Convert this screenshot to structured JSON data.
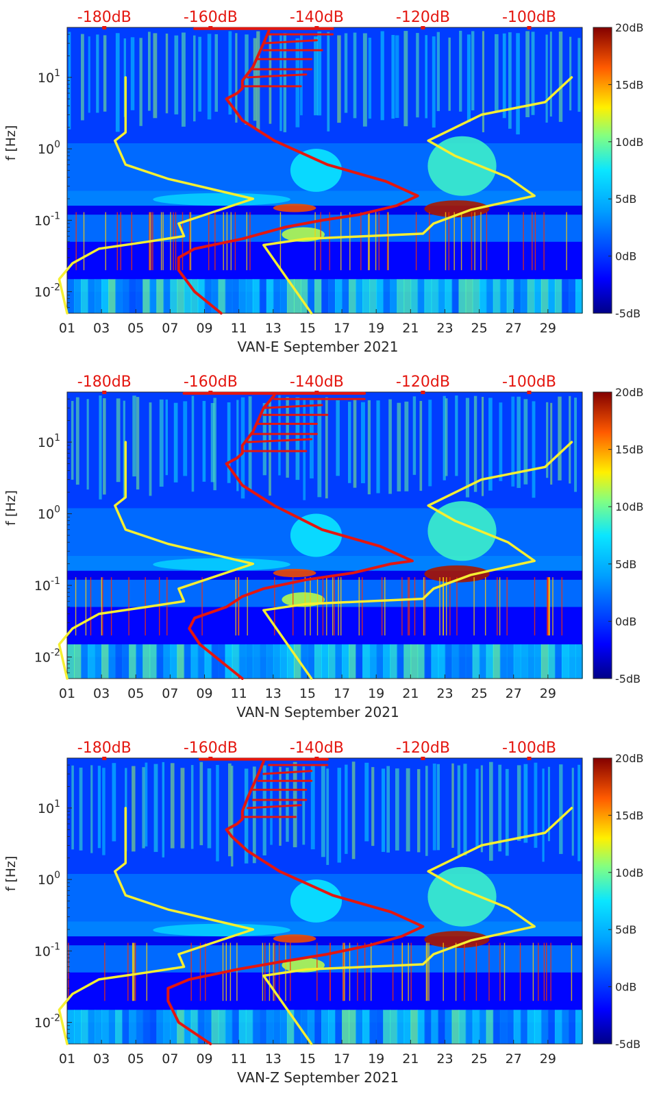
{
  "chart_data": [
    {
      "type": "heatmap",
      "title": "",
      "xlabel": "VAN-E September 2021",
      "ylabel": "f [Hz]",
      "x_ticks": [
        "01",
        "03",
        "05",
        "07",
        "09",
        "11",
        "13",
        "15",
        "17",
        "19",
        "21",
        "23",
        "25",
        "27",
        "29"
      ],
      "x_range": [
        1,
        31
      ],
      "y_scale": "log",
      "y_range": [
        0.005,
        50
      ],
      "y_ticks": [
        {
          "label_base": "10",
          "label_exp": "-2",
          "value": 0.01
        },
        {
          "label_base": "10",
          "label_exp": "-1",
          "value": 0.1
        },
        {
          "label_base": "10",
          "label_exp": "0",
          "value": 1
        },
        {
          "label_base": "10",
          "label_exp": "1",
          "value": 10
        }
      ],
      "top_axis_labels": [
        "-180dB",
        "-160dB",
        "-140dB",
        "-120dB",
        "-100dB"
      ],
      "top_axis_range_db": [
        -187,
        -90
      ],
      "colorbar": {
        "labels": [
          "20dB",
          "15dB",
          "10dB",
          "5dB",
          "0dB",
          "-5dB"
        ],
        "range": [
          -5,
          20
        ]
      },
      "colors": {
        "curve_psd": "#e4160f",
        "curve_model": "#f5ef32",
        "annotation": "#e4160f"
      },
      "series": [
        {
          "name": "yellow-model-low",
          "points": [
            [
              -187,
              0.005
            ],
            [
              -188.5,
              0.015
            ],
            [
              -186,
              0.025
            ],
            [
              -181,
              0.04
            ],
            [
              -172,
              0.05
            ],
            [
              -165,
              0.06
            ],
            [
              -166,
              0.09
            ],
            [
              -152,
              0.2
            ],
            [
              -168,
              0.38
            ],
            [
              -176,
              0.6
            ],
            [
              -178,
              1.3
            ],
            [
              -176,
              1.7
            ],
            [
              -176,
              10
            ]
          ]
        },
        {
          "name": "yellow-model-high",
          "points": [
            [
              -141,
              0.005
            ],
            [
              -150,
              0.045
            ],
            [
              -142,
              0.055
            ],
            [
              -120,
              0.065
            ],
            [
              -118,
              0.09
            ],
            [
              -111,
              0.14
            ],
            [
              -99,
              0.22
            ],
            [
              -104,
              0.4
            ],
            [
              -114,
              0.8
            ],
            [
              -119,
              1.3
            ],
            [
              -109,
              3
            ],
            [
              -97,
              4.5
            ],
            [
              -92,
              10
            ]
          ]
        },
        {
          "name": "red-psd",
          "points": [
            [
              -158,
              0.005
            ],
            [
              -163,
              0.01
            ],
            [
              -166,
              0.02
            ],
            [
              -166,
              0.03
            ],
            [
              -163,
              0.04
            ],
            [
              -154,
              0.055
            ],
            [
              -146,
              0.08
            ],
            [
              -139,
              0.1
            ],
            [
              -132,
              0.12
            ],
            [
              -125,
              0.16
            ],
            [
              -121,
              0.22
            ],
            [
              -127,
              0.35
            ],
            [
              -138,
              0.6
            ],
            [
              -148,
              1.3
            ],
            [
              -154,
              2.5
            ],
            [
              -156,
              4
            ],
            [
              -157,
              5
            ],
            [
              -155,
              6
            ],
            [
              -154,
              7
            ],
            [
              -154,
              9
            ],
            [
              -152,
              14
            ],
            [
              -150,
              30
            ],
            [
              -149,
              45
            ]
          ]
        },
        {
          "name": "red-psd-spikes",
          "points": [
            [
              -154,
              7.5
            ],
            [
              -143,
              7.5
            ],
            [
              -153,
              10
            ],
            [
              -142,
              11
            ],
            [
              -152,
              13
            ],
            [
              -141,
              13
            ],
            [
              -151,
              18
            ],
            [
              -141,
              18
            ],
            [
              -150,
              24
            ],
            [
              -139,
              24
            ],
            [
              -150,
              30
            ],
            [
              -140,
              33
            ],
            [
              -149,
              40
            ],
            [
              -137,
              40
            ]
          ]
        },
        {
          "name": "red-top-band",
          "points": [
            [
              -163,
              48
            ],
            [
              -137,
              48
            ]
          ]
        }
      ]
    },
    {
      "type": "heatmap",
      "title": "",
      "xlabel": "VAN-N September 2021",
      "ylabel": "f [Hz]",
      "x_ticks": [
        "01",
        "03",
        "05",
        "07",
        "09",
        "11",
        "13",
        "15",
        "17",
        "19",
        "21",
        "23",
        "25",
        "27",
        "29"
      ],
      "x_range": [
        1,
        31
      ],
      "y_scale": "log",
      "y_range": [
        0.005,
        50
      ],
      "y_ticks": [
        {
          "label_base": "10",
          "label_exp": "-2",
          "value": 0.01
        },
        {
          "label_base": "10",
          "label_exp": "-1",
          "value": 0.1
        },
        {
          "label_base": "10",
          "label_exp": "0",
          "value": 1
        },
        {
          "label_base": "10",
          "label_exp": "1",
          "value": 10
        }
      ],
      "top_axis_labels": [
        "-180dB",
        "-160dB",
        "-140dB",
        "-120dB",
        "-100dB"
      ],
      "top_axis_range_db": [
        -187,
        -90
      ],
      "colorbar": {
        "labels": [
          "20dB",
          "15dB",
          "10dB",
          "5dB",
          "0dB",
          "-5dB"
        ],
        "range": [
          -5,
          20
        ]
      },
      "colors": {
        "curve_psd": "#e4160f",
        "curve_model": "#f5ef32",
        "annotation": "#e4160f"
      },
      "series": [
        {
          "name": "yellow-model-low",
          "points": [
            [
              -187,
              0.005
            ],
            [
              -188.5,
              0.015
            ],
            [
              -186,
              0.025
            ],
            [
              -181,
              0.04
            ],
            [
              -172,
              0.05
            ],
            [
              -165,
              0.06
            ],
            [
              -166,
              0.09
            ],
            [
              -152,
              0.2
            ],
            [
              -168,
              0.38
            ],
            [
              -176,
              0.6
            ],
            [
              -178,
              1.3
            ],
            [
              -176,
              1.7
            ],
            [
              -176,
              10
            ]
          ]
        },
        {
          "name": "yellow-model-high",
          "points": [
            [
              -141,
              0.005
            ],
            [
              -150,
              0.045
            ],
            [
              -142,
              0.055
            ],
            [
              -120,
              0.065
            ],
            [
              -118,
              0.09
            ],
            [
              -111,
              0.14
            ],
            [
              -99,
              0.22
            ],
            [
              -104,
              0.4
            ],
            [
              -114,
              0.8
            ],
            [
              -119,
              1.3
            ],
            [
              -109,
              3
            ],
            [
              -97,
              4.5
            ],
            [
              -92,
              10
            ]
          ]
        },
        {
          "name": "red-psd",
          "points": [
            [
              -154,
              0.005
            ],
            [
              -162,
              0.015
            ],
            [
              -164,
              0.025
            ],
            [
              -163,
              0.035
            ],
            [
              -157,
              0.05
            ],
            [
              -154,
              0.07
            ],
            [
              -150,
              0.09
            ],
            [
              -142,
              0.12
            ],
            [
              -133,
              0.15
            ],
            [
              -126,
              0.2
            ],
            [
              -122,
              0.22
            ],
            [
              -128,
              0.35
            ],
            [
              -139,
              0.6
            ],
            [
              -148,
              1.3
            ],
            [
              -154,
              2.5
            ],
            [
              -156,
              4
            ],
            [
              -157,
              5
            ],
            [
              -155,
              6
            ],
            [
              -154,
              7
            ],
            [
              -154,
              9
            ],
            [
              -152,
              14
            ],
            [
              -150,
              30
            ],
            [
              -148,
              45
            ]
          ]
        },
        {
          "name": "red-psd-spikes",
          "points": [
            [
              -154,
              7.5
            ],
            [
              -142,
              7.5
            ],
            [
              -153,
              10
            ],
            [
              -141,
              11
            ],
            [
              -152,
              13
            ],
            [
              -140,
              13
            ],
            [
              -151,
              18
            ],
            [
              -140,
              18
            ],
            [
              -150,
              24
            ],
            [
              -138,
              24
            ],
            [
              -150,
              30
            ],
            [
              -139,
              33
            ],
            [
              -148,
              40
            ],
            [
              -131,
              40
            ]
          ]
        },
        {
          "name": "red-top-band",
          "points": [
            [
              -165,
              48
            ],
            [
              -131,
              48
            ]
          ]
        }
      ]
    },
    {
      "type": "heatmap",
      "title": "",
      "xlabel": "VAN-Z September 2021",
      "ylabel": "f [Hz]",
      "x_ticks": [
        "01",
        "03",
        "05",
        "07",
        "09",
        "11",
        "13",
        "15",
        "17",
        "19",
        "21",
        "23",
        "25",
        "27",
        "29"
      ],
      "x_range": [
        1,
        31
      ],
      "y_scale": "log",
      "y_range": [
        0.005,
        50
      ],
      "y_ticks": [
        {
          "label_base": "10",
          "label_exp": "-2",
          "value": 0.01
        },
        {
          "label_base": "10",
          "label_exp": "-1",
          "value": 0.1
        },
        {
          "label_base": "10",
          "label_exp": "0",
          "value": 1
        },
        {
          "label_base": "10",
          "label_exp": "1",
          "value": 10
        }
      ],
      "top_axis_labels": [
        "-180dB",
        "-160dB",
        "-140dB",
        "-120dB",
        "-100dB"
      ],
      "top_axis_range_db": [
        -187,
        -90
      ],
      "colorbar": {
        "labels": [
          "20dB",
          "15dB",
          "10dB",
          "5dB",
          "0dB",
          "-5dB"
        ],
        "range": [
          -5,
          20
        ]
      },
      "colors": {
        "curve_psd": "#e4160f",
        "curve_model": "#f5ef32",
        "annotation": "#e4160f"
      },
      "series": [
        {
          "name": "yellow-model-low",
          "points": [
            [
              -187,
              0.005
            ],
            [
              -188.5,
              0.015
            ],
            [
              -186,
              0.025
            ],
            [
              -181,
              0.04
            ],
            [
              -172,
              0.05
            ],
            [
              -165,
              0.06
            ],
            [
              -166,
              0.09
            ],
            [
              -152,
              0.2
            ],
            [
              -168,
              0.38
            ],
            [
              -176,
              0.6
            ],
            [
              -178,
              1.3
            ],
            [
              -176,
              1.7
            ],
            [
              -176,
              10
            ]
          ]
        },
        {
          "name": "yellow-model-high",
          "points": [
            [
              -141,
              0.005
            ],
            [
              -150,
              0.045
            ],
            [
              -142,
              0.055
            ],
            [
              -120,
              0.065
            ],
            [
              -118,
              0.09
            ],
            [
              -111,
              0.14
            ],
            [
              -99,
              0.22
            ],
            [
              -104,
              0.4
            ],
            [
              -114,
              0.8
            ],
            [
              -119,
              1.3
            ],
            [
              -109,
              3
            ],
            [
              -97,
              4.5
            ],
            [
              -92,
              10
            ]
          ]
        },
        {
          "name": "red-psd",
          "points": [
            [
              -160,
              0.005
            ],
            [
              -166,
              0.01
            ],
            [
              -168,
              0.02
            ],
            [
              -168,
              0.03
            ],
            [
              -164,
              0.04
            ],
            [
              -155,
              0.055
            ],
            [
              -147,
              0.07
            ],
            [
              -138,
              0.09
            ],
            [
              -130,
              0.12
            ],
            [
              -124,
              0.16
            ],
            [
              -120,
              0.22
            ],
            [
              -126,
              0.35
            ],
            [
              -137,
              0.6
            ],
            [
              -147,
              1.3
            ],
            [
              -153,
              2.5
            ],
            [
              -156,
              4
            ],
            [
              -157,
              5
            ],
            [
              -155,
              6
            ],
            [
              -154,
              7
            ],
            [
              -154,
              9
            ],
            [
              -153,
              14
            ],
            [
              -151,
              30
            ],
            [
              -150,
              45
            ]
          ]
        },
        {
          "name": "red-psd-spikes",
          "points": [
            [
              -154,
              7.5
            ],
            [
              -144,
              7.5
            ],
            [
              -153,
              10
            ],
            [
              -143,
              11
            ],
            [
              -152,
              13
            ],
            [
              -142,
              13
            ],
            [
              -152,
              18
            ],
            [
              -142,
              18
            ],
            [
              -151,
              24
            ],
            [
              -141,
              24
            ],
            [
              -150,
              30
            ],
            [
              -141,
              33
            ],
            [
              -149,
              40
            ],
            [
              -138,
              40
            ]
          ]
        },
        {
          "name": "red-top-band",
          "points": [
            [
              -162,
              48
            ],
            [
              -138,
              48
            ]
          ]
        }
      ]
    }
  ]
}
